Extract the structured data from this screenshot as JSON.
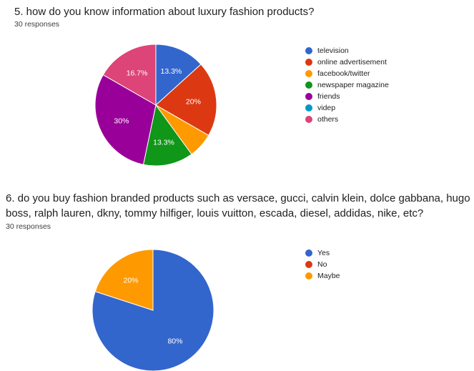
{
  "questions": [
    {
      "title": "5. how do you know information about luxury fashion products?",
      "responses": "30 responses"
    },
    {
      "title": "6. do you buy fashion branded products such as versace, gucci, calvin klein, dolce gabbana, hugo boss, ralph lauren, dkny, tommy hilfiger, louis vuitton, escada, diesel, addidas, nike, etc?",
      "responses": "30 responses"
    }
  ],
  "chart_data": [
    {
      "type": "pie",
      "title": "",
      "start_angle_deg": 90,
      "direction": "clockwise",
      "legend_position": "right",
      "categories": [
        "television",
        "online advertisement",
        "facebook/twitter",
        "newspaper magazine",
        "friends",
        "videp",
        "others"
      ],
      "colors": [
        "#3366cc",
        "#dc3912",
        "#ff9900",
        "#109618",
        "#990099",
        "#0099c6",
        "#dd4477"
      ],
      "values": [
        13.3,
        20,
        6.7,
        13.3,
        30,
        0,
        16.7
      ],
      "labels": [
        "13.3%",
        "20%",
        "",
        "13.3%",
        "30%",
        "",
        "16.7%"
      ]
    },
    {
      "type": "pie",
      "title": "",
      "start_angle_deg": 90,
      "direction": "clockwise",
      "legend_position": "right",
      "categories": [
        "Yes",
        "No",
        "Maybe"
      ],
      "colors": [
        "#3366cc",
        "#dc3912",
        "#ff9900"
      ],
      "values": [
        80,
        0,
        20
      ],
      "labels": [
        "80%",
        "",
        "20%"
      ]
    }
  ]
}
